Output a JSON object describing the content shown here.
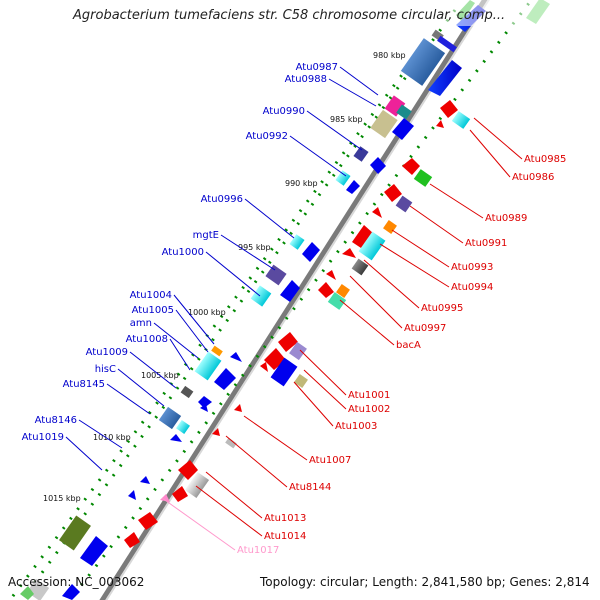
{
  "header": {
    "title": "Agrobacterium tumefaciens str. C58 chromosome circular, comp..."
  },
  "footer": {
    "accession": "Accession: NC_003062",
    "summary": "Topology: circular; Length: 2,841,580 bp; Genes: 2,814"
  },
  "ruler": {
    "ticks": [
      "980 kbp",
      "985 kbp",
      "990 kbp",
      "995 kbp",
      "1000 kbp",
      "1005 kbp",
      "1010 kbp",
      "1015 kbp"
    ]
  },
  "genes_left": [
    {
      "name": "Atu0987",
      "color": "#0000cc"
    },
    {
      "name": "Atu0988",
      "color": "#0000cc"
    },
    {
      "name": "Atu0990",
      "color": "#0000cc"
    },
    {
      "name": "Atu0992",
      "color": "#0000cc"
    },
    {
      "name": "Atu0996",
      "color": "#0000cc"
    },
    {
      "name": "mgtE",
      "color": "#0000cc"
    },
    {
      "name": "Atu1000",
      "color": "#0000cc"
    },
    {
      "name": "Atu1004",
      "color": "#0000cc"
    },
    {
      "name": "Atu1005",
      "color": "#0000cc"
    },
    {
      "name": "amn",
      "color": "#0000cc"
    },
    {
      "name": "Atu1008",
      "color": "#0000cc"
    },
    {
      "name": "Atu1009",
      "color": "#0000cc"
    },
    {
      "name": "hisC",
      "color": "#0000cc"
    },
    {
      "name": "Atu8145",
      "color": "#0000cc"
    },
    {
      "name": "Atu8146",
      "color": "#0000cc"
    },
    {
      "name": "Atu1019",
      "color": "#0000cc"
    }
  ],
  "genes_right": [
    {
      "name": "Atu0985",
      "color": "#dd0000"
    },
    {
      "name": "Atu0986",
      "color": "#dd0000"
    },
    {
      "name": "Atu0989",
      "color": "#dd0000"
    },
    {
      "name": "Atu0991",
      "color": "#dd0000"
    },
    {
      "name": "Atu0993",
      "color": "#dd0000"
    },
    {
      "name": "Atu0994",
      "color": "#dd0000"
    },
    {
      "name": "Atu0995",
      "color": "#dd0000"
    },
    {
      "name": "Atu0997",
      "color": "#dd0000"
    },
    {
      "name": "bacA",
      "color": "#dd0000"
    },
    {
      "name": "Atu1001",
      "color": "#dd0000"
    },
    {
      "name": "Atu1002",
      "color": "#dd0000"
    },
    {
      "name": "Atu1003",
      "color": "#dd0000"
    },
    {
      "name": "Atu1007",
      "color": "#dd0000"
    },
    {
      "name": "Atu8144",
      "color": "#dd0000"
    },
    {
      "name": "Atu1013",
      "color": "#dd0000"
    },
    {
      "name": "Atu1014",
      "color": "#dd0000"
    },
    {
      "name": "Atu1017",
      "color": "#ff99cc"
    }
  ],
  "colors": {
    "forward_strand": "#0000ee",
    "reverse_strand": "#ee0000",
    "backbone": "#777777",
    "tick_mark": "#008800"
  }
}
